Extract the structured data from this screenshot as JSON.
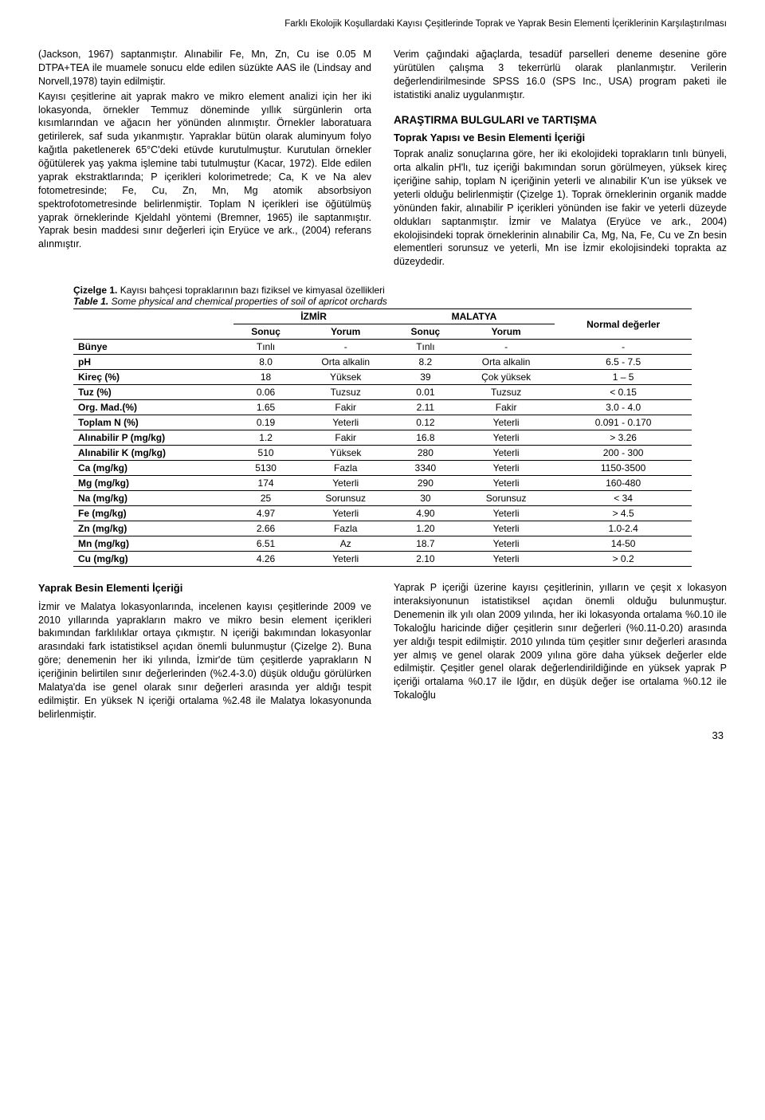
{
  "header": {
    "title": "Farklı Ekolojik Koşullardaki Kayısı Çeşitlerinde Toprak ve Yaprak Besin Elementi İçeriklerinin Karşılaştırılması"
  },
  "left_col": {
    "p1": "(Jackson, 1967) saptanmıştır. Alınabilir Fe, Mn, Zn, Cu ise 0.05 M DTPA+TEA ile muamele sonucu elde edilen süzükte AAS ile (Lindsay and Norvell,1978) tayin edilmiştir.",
    "p2": "Kayısı çeşitlerine ait yaprak makro ve mikro element analizi için her iki lokasyonda, örnekler Temmuz döneminde yıllık sürgünlerin orta kısımlarından ve ağacın her yönünden alınmıştır. Örnekler laboratuara getirilerek, saf suda yıkanmıştır. Yapraklar bütün olarak aluminyum folyo kağıtla paketlenerek 65°C'deki etüvde kurutulmuştur. Kurutulan örnekler öğütülerek yaş yakma işlemine tabi tutulmuştur (Kacar, 1972). Elde edilen yaprak ekstraktlarında; P içerikleri kolorimetrede; Ca, K ve Na alev fotometresinde; Fe, Cu, Zn, Mn, Mg atomik absorbsiyon spektrofotometresinde belirlenmiştir. Toplam N içerikleri ise öğütülmüş yaprak örneklerinde Kjeldahl yöntemi (Bremner, 1965) ile saptanmıştır. Yaprak besin maddesi sınır değerleri için Eryüce ve ark., (2004) referans alınmıştır."
  },
  "right_col": {
    "p1": "Verim çağındaki ağaçlarda, tesadüf parselleri deneme desenine göre yürütülen çalışma 3 tekerrürlü olarak planlanmıştır. Verilerin değerlendirilmesinde SPSS 16.0 (SPS Inc., USA) program paketi ile istatistiki analiz uygulanmıştır.",
    "h1": "ARAŞTIRMA BULGULARI ve TARTIŞMA",
    "h2": "Toprak Yapısı ve Besin Elementi İçeriği",
    "p2": "Toprak analiz sonuçlarına göre, her iki ekolojideki toprakların tınlı bünyeli, orta alkalin pH'lı, tuz içeriği bakımından sorun görülmeyen, yüksek kireç içeriğine sahip, toplam N içeriğinin yeterli ve alınabilir K'un ise yüksek ve yeterli olduğu belirlenmiştir (Çizelge 1). Toprak örneklerinin organik madde yönünden fakir, alınabilir P içerikleri yönünden ise fakir ve yeterli düzeyde oldukları saptanmıştır. İzmir ve Malatya (Eryüce ve ark., 2004) ekolojisindeki toprak örneklerinin alınabilir Ca, Mg, Na, Fe, Cu ve Zn besin elementleri sorunsuz ve yeterli, Mn ise İzmir ekolojisindeki toprakta az düzeydedir."
  },
  "table": {
    "caption_tr_label": "Çizelge 1.",
    "caption_tr": " Kayısı bahçesi topraklarının bazı fiziksel ve kimyasal özellikleri",
    "caption_en_label": "Table 1.",
    "caption_en": " Some physical and chemical properties of soil of apricot orchards",
    "group_izmir": "İZMİR",
    "group_malatya": "MALATYA",
    "col_sonuc": "Sonuç",
    "col_yorum": "Yorum",
    "col_normal": "Normal değerler",
    "rows": {
      "r0": {
        "name": "Bünye",
        "i_s": "Tınlı",
        "i_y": "-",
        "m_s": "Tınlı",
        "m_y": "-",
        "n": "-"
      },
      "r1": {
        "name": "pH",
        "i_s": "8.0",
        "i_y": "Orta alkalin",
        "m_s": "8.2",
        "m_y": "Orta alkalin",
        "n": "6.5 - 7.5"
      },
      "r2": {
        "name": "Kireç (%)",
        "i_s": "18",
        "i_y": "Yüksek",
        "m_s": "39",
        "m_y": "Çok yüksek",
        "n": "1 – 5"
      },
      "r3": {
        "name": "Tuz (%)",
        "i_s": "0.06",
        "i_y": "Tuzsuz",
        "m_s": "0.01",
        "m_y": "Tuzsuz",
        "n": "< 0.15"
      },
      "r4": {
        "name": "Org. Mad.(%)",
        "i_s": "1.65",
        "i_y": "Fakir",
        "m_s": "2.11",
        "m_y": "Fakir",
        "n": "3.0 - 4.0"
      },
      "r5": {
        "name": "Toplam N (%)",
        "i_s": "0.19",
        "i_y": "Yeterli",
        "m_s": "0.12",
        "m_y": "Yeterli",
        "n": "0.091 - 0.170"
      },
      "r6": {
        "name": "Alınabilir P (mg/kg)",
        "i_s": "1.2",
        "i_y": "Fakir",
        "m_s": "16.8",
        "m_y": "Yeterli",
        "n": "> 3.26"
      },
      "r7": {
        "name": "Alınabilir K (mg/kg)",
        "i_s": "510",
        "i_y": "Yüksek",
        "m_s": "280",
        "m_y": "Yeterli",
        "n": "200 - 300"
      },
      "r8": {
        "name": "Ca (mg/kg)",
        "i_s": "5130",
        "i_y": "Fazla",
        "m_s": "3340",
        "m_y": "Yeterli",
        "n": "1150-3500"
      },
      "r9": {
        "name": "Mg (mg/kg)",
        "i_s": "174",
        "i_y": "Yeterli",
        "m_s": "290",
        "m_y": "Yeterli",
        "n": "160-480"
      },
      "r10": {
        "name": "Na (mg/kg)",
        "i_s": "25",
        "i_y": "Sorunsuz",
        "m_s": "30",
        "m_y": "Sorunsuz",
        "n": "< 34"
      },
      "r11": {
        "name": "Fe (mg/kg)",
        "i_s": "4.97",
        "i_y": "Yeterli",
        "m_s": "4.90",
        "m_y": "Yeterli",
        "n": "> 4.5"
      },
      "r12": {
        "name": "Zn (mg/kg)",
        "i_s": "2.66",
        "i_y": "Fazla",
        "m_s": "1.20",
        "m_y": "Yeterli",
        "n": "1.0-2.4"
      },
      "r13": {
        "name": "Mn (mg/kg)",
        "i_s": "6.51",
        "i_y": "Az",
        "m_s": "18.7",
        "m_y": "Yeterli",
        "n": "14-50"
      },
      "r14": {
        "name": "Cu (mg/kg)",
        "i_s": "4.26",
        "i_y": "Yeterli",
        "m_s": "2.10",
        "m_y": "Yeterli",
        "n": "> 0.2"
      }
    }
  },
  "bottom_left": {
    "h": "Yaprak Besin Elementi İçeriği",
    "p": "İzmir ve Malatya lokasyonlarında, incelenen kayısı çeşitlerinde 2009 ve 2010 yıllarında yaprakların makro ve mikro besin element içerikleri bakımından farklılıklar ortaya çıkmıştır. N içeriği bakımından lokasyonlar arasındaki fark istatistiksel açıdan önemli bulunmuştur (Çizelge 2). Buna göre; denemenin her iki yılında, İzmir'de tüm çeşitlerde yaprakların N içeriğinin belirtilen sınır değerlerinden (%2.4-3.0) düşük olduğu görülürken Malatya'da ise genel olarak sınır değerleri arasında yer aldığı tespit edilmiştir. En yüksek N içeriği ortalama %2.48 ile Malatya lokasyonunda belirlenmiştir."
  },
  "bottom_right": {
    "p": "Yaprak P içeriği üzerine kayısı çeşitlerinin, yılların ve çeşit x lokasyon interaksiyonunun istatistiksel açıdan önemli olduğu bulunmuştur. Denemenin ilk yılı olan 2009 yılında, her iki lokasyonda ortalama %0.10 ile Tokaloğlu haricinde diğer çeşitlerin sınır değerleri (%0.11-0.20) arasında yer aldığı tespit edilmiştir. 2010 yılında tüm çeşitler sınır değerleri arasında yer almış ve genel olarak 2009 yılına göre daha yüksek değerler elde edilmiştir. Çeşitler genel olarak değerlendirildiğinde en yüksek yaprak P içeriği ortalama %0.17 ile Iğdır, en düşük değer ise ortalama %0.12 ile Tokaloğlu"
  },
  "footer": {
    "page": "33"
  }
}
